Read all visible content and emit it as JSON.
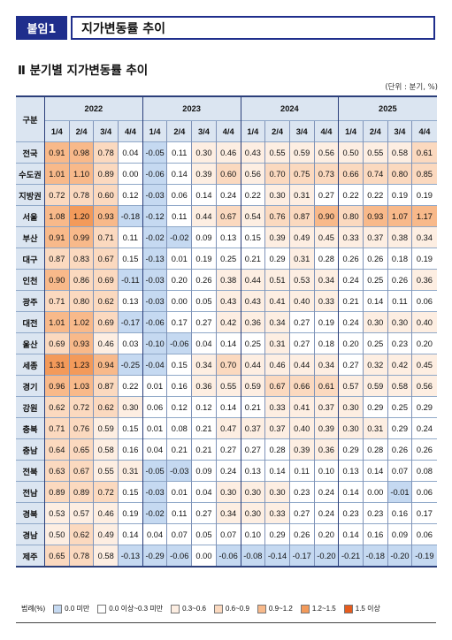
{
  "header": {
    "badge": "붙임1",
    "title": "지가변동률 추이"
  },
  "section_title": "Ⅱ 분기별 지가변동률 추이",
  "unit_note": "(단위 : 분기, %)",
  "table": {
    "region_header": "구분",
    "years": [
      "2022",
      "2023",
      "2024",
      "2025"
    ],
    "quarters": [
      "1/4",
      "2/4",
      "3/4",
      "4/4"
    ],
    "rows": [
      {
        "region": "전국",
        "values": [
          "0.91",
          "0.98",
          "0.78",
          "0.04",
          "-0.05",
          "0.11",
          "0.30",
          "0.46",
          "0.43",
          "0.55",
          "0.59",
          "0.56",
          "0.50",
          "0.55",
          "0.58",
          "0.61"
        ]
      },
      {
        "region": "수도권",
        "values": [
          "1.01",
          "1.10",
          "0.89",
          "0.00",
          "-0.06",
          "0.14",
          "0.39",
          "0.60",
          "0.56",
          "0.70",
          "0.75",
          "0.73",
          "0.66",
          "0.74",
          "0.80",
          "0.85"
        ]
      },
      {
        "region": "지방권",
        "values": [
          "0.72",
          "0.78",
          "0.60",
          "0.12",
          "-0.03",
          "0.06",
          "0.14",
          "0.24",
          "0.22",
          "0.30",
          "0.31",
          "0.27",
          "0.22",
          "0.22",
          "0.19",
          "0.19"
        ]
      },
      {
        "region": "서울",
        "values": [
          "1.08",
          "1.20",
          "0.93",
          "-0.18",
          "-0.12",
          "0.11",
          "0.44",
          "0.67",
          "0.54",
          "0.76",
          "0.87",
          "0.90",
          "0.80",
          "0.93",
          "1.07",
          "1.17"
        ]
      },
      {
        "region": "부산",
        "values": [
          "0.91",
          "0.99",
          "0.71",
          "0.11",
          "-0.02",
          "-0.02",
          "0.09",
          "0.13",
          "0.15",
          "0.39",
          "0.49",
          "0.45",
          "0.33",
          "0.37",
          "0.38",
          "0.34"
        ]
      },
      {
        "region": "대구",
        "values": [
          "0.87",
          "0.83",
          "0.67",
          "0.15",
          "-0.13",
          "0.01",
          "0.19",
          "0.25",
          "0.21",
          "0.29",
          "0.31",
          "0.28",
          "0.26",
          "0.26",
          "0.18",
          "0.19"
        ]
      },
      {
        "region": "인천",
        "values": [
          "0.90",
          "0.86",
          "0.69",
          "-0.11",
          "-0.03",
          "0.20",
          "0.26",
          "0.38",
          "0.44",
          "0.51",
          "0.53",
          "0.34",
          "0.24",
          "0.25",
          "0.26",
          "0.36"
        ]
      },
      {
        "region": "광주",
        "values": [
          "0.71",
          "0.80",
          "0.62",
          "0.13",
          "-0.03",
          "0.00",
          "0.05",
          "0.43",
          "0.43",
          "0.41",
          "0.40",
          "0.33",
          "0.21",
          "0.14",
          "0.11",
          "0.06"
        ]
      },
      {
        "region": "대전",
        "values": [
          "1.01",
          "1.02",
          "0.69",
          "-0.17",
          "-0.06",
          "0.17",
          "0.27",
          "0.42",
          "0.36",
          "0.34",
          "0.27",
          "0.19",
          "0.24",
          "0.30",
          "0.30",
          "0.40"
        ]
      },
      {
        "region": "울산",
        "values": [
          "0.69",
          "0.93",
          "0.46",
          "0.03",
          "-0.10",
          "-0.06",
          "0.04",
          "0.14",
          "0.25",
          "0.31",
          "0.27",
          "0.18",
          "0.20",
          "0.25",
          "0.23",
          "0.20"
        ]
      },
      {
        "region": "세종",
        "values": [
          "1.31",
          "1.23",
          "0.94",
          "-0.25",
          "-0.04",
          "0.15",
          "0.34",
          "0.70",
          "0.44",
          "0.46",
          "0.44",
          "0.34",
          "0.27",
          "0.32",
          "0.42",
          "0.45"
        ]
      },
      {
        "region": "경기",
        "values": [
          "0.96",
          "1.03",
          "0.87",
          "0.22",
          "0.01",
          "0.16",
          "0.36",
          "0.55",
          "0.59",
          "0.67",
          "0.66",
          "0.61",
          "0.57",
          "0.59",
          "0.58",
          "0.56"
        ]
      },
      {
        "region": "강원",
        "values": [
          "0.62",
          "0.72",
          "0.62",
          "0.30",
          "0.06",
          "0.12",
          "0.12",
          "0.14",
          "0.21",
          "0.33",
          "0.41",
          "0.37",
          "0.30",
          "0.29",
          "0.25",
          "0.29"
        ]
      },
      {
        "region": "충북",
        "values": [
          "0.71",
          "0.76",
          "0.59",
          "0.15",
          "0.01",
          "0.08",
          "0.21",
          "0.47",
          "0.37",
          "0.37",
          "0.40",
          "0.39",
          "0.30",
          "0.31",
          "0.29",
          "0.24"
        ]
      },
      {
        "region": "충남",
        "values": [
          "0.64",
          "0.65",
          "0.58",
          "0.16",
          "0.04",
          "0.21",
          "0.21",
          "0.27",
          "0.27",
          "0.28",
          "0.39",
          "0.36",
          "0.29",
          "0.28",
          "0.26",
          "0.26"
        ]
      },
      {
        "region": "전북",
        "values": [
          "0.63",
          "0.67",
          "0.55",
          "0.31",
          "-0.05",
          "-0.03",
          "0.09",
          "0.24",
          "0.13",
          "0.14",
          "0.11",
          "0.10",
          "0.13",
          "0.14",
          "0.07",
          "0.08"
        ]
      },
      {
        "region": "전남",
        "values": [
          "0.89",
          "0.89",
          "0.72",
          "0.15",
          "-0.03",
          "0.01",
          "0.04",
          "0.30",
          "0.30",
          "0.30",
          "0.23",
          "0.24",
          "0.14",
          "0.00",
          "-0.01",
          "0.06"
        ]
      },
      {
        "region": "경북",
        "values": [
          "0.53",
          "0.57",
          "0.46",
          "0.19",
          "-0.02",
          "0.11",
          "0.27",
          "0.34",
          "0.30",
          "0.33",
          "0.27",
          "0.24",
          "0.23",
          "0.23",
          "0.16",
          "0.17"
        ]
      },
      {
        "region": "경남",
        "values": [
          "0.50",
          "0.62",
          "0.49",
          "0.14",
          "0.04",
          "0.07",
          "0.05",
          "0.07",
          "0.10",
          "0.29",
          "0.26",
          "0.20",
          "0.14",
          "0.16",
          "0.09",
          "0.06"
        ]
      },
      {
        "region": "제주",
        "values": [
          "0.65",
          "0.78",
          "0.58",
          "-0.13",
          "-0.29",
          "-0.06",
          "0.00",
          "-0.06",
          "-0.08",
          "-0.14",
          "-0.17",
          "-0.20",
          "-0.21",
          "-0.18",
          "-0.20",
          "-0.19"
        ]
      }
    ]
  },
  "legend": {
    "title": "범례(%)",
    "items": [
      {
        "label": "0.0 미만",
        "color": "#c5d9f1"
      },
      {
        "label": "0.0 이상~0.3 미만",
        "color": "#ffffff"
      },
      {
        "label": "0.3~0.6",
        "color": "#fdeee2"
      },
      {
        "label": "0.6~0.9",
        "color": "#fbd9bf"
      },
      {
        "label": "0.9~1.2",
        "color": "#f8b98a"
      },
      {
        "label": "1.2~1.5",
        "color": "#f39a5a"
      },
      {
        "label": "1.5 이상",
        "color": "#e65c1e"
      }
    ]
  }
}
